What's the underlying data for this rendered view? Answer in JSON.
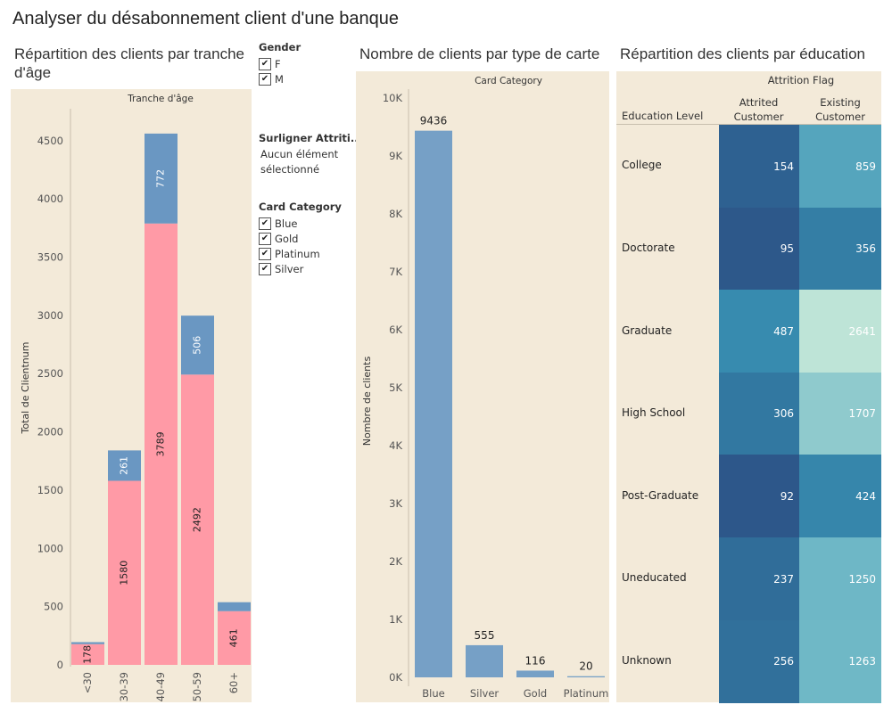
{
  "dashboard": {
    "title": "Analyser du désabonnement client d'une banque"
  },
  "colors": {
    "panel_bg": "#f3ead9",
    "attrited": "#6a97c2",
    "existing": "#ff9aa6",
    "card_bar": "#76a0c6"
  },
  "filters": {
    "gender": {
      "title": "Gender",
      "items": [
        {
          "label": "F",
          "checked": true
        },
        {
          "label": "M",
          "checked": true
        }
      ]
    },
    "highlight": {
      "title": "Surligner Attriti..",
      "value": "Aucun élément sélectionné",
      "line1": "Aucun élément",
      "line2": "sélectionné"
    },
    "card_category": {
      "title": "Card Category",
      "items": [
        {
          "label": "Blue",
          "checked": true
        },
        {
          "label": "Gold",
          "checked": true
        },
        {
          "label": "Platinum",
          "checked": true
        },
        {
          "label": "Silver",
          "checked": true
        }
      ]
    }
  },
  "chart_data": [
    {
      "type": "bar",
      "stacked": true,
      "title": "Répartition des clients par tranche d'âge",
      "title_line1": "Répartition des clients par tranche",
      "title_line2": "d'âge",
      "column_header": "Tranche d'âge",
      "ylabel": "Total de Clientnum",
      "ylim": [
        0,
        4800
      ],
      "yticks": [
        0,
        500,
        1000,
        1500,
        2000,
        2500,
        3000,
        3500,
        4000,
        4500
      ],
      "categories": [
        "<30",
        "30-39",
        "40-49",
        "50-59",
        "60+"
      ],
      "series": [
        {
          "name": "Existing Customer",
          "color": "#ff9aa6",
          "values": [
            178,
            1580,
            3789,
            2492,
            461
          ]
        },
        {
          "name": "Attrited Customer",
          "color": "#6a97c2",
          "values": [
            17,
            261,
            772,
            506,
            77
          ]
        }
      ],
      "bar_labels": {
        "Existing Customer": [
          "178",
          "1580",
          "3789",
          "2492",
          "461"
        ],
        "Attrited Customer": [
          "",
          "261",
          "772",
          "506",
          ""
        ]
      }
    },
    {
      "type": "bar",
      "title": "Nombre de clients par type de carte",
      "column_header": "Card Category",
      "ylabel": "Nombre de clients",
      "ylim": [
        0,
        10000
      ],
      "yticks": [
        0,
        1000,
        2000,
        3000,
        4000,
        5000,
        6000,
        7000,
        8000,
        9000,
        10000
      ],
      "ytick_labels": [
        "0K",
        "1K",
        "2K",
        "3K",
        "4K",
        "5K",
        "6K",
        "7K",
        "8K",
        "9K",
        "10K"
      ],
      "categories": [
        "Blue",
        "Silver",
        "Gold",
        "Platinum"
      ],
      "values": [
        9436,
        555,
        116,
        20
      ],
      "value_labels": [
        "9436",
        "555",
        "116",
        "20"
      ]
    },
    {
      "type": "heatmap",
      "title": "Répartition des clients par éducation",
      "column_group_header": "Attrition Flag",
      "row_header": "Education Level",
      "columns": [
        "Attrited Customer",
        "Existing Customer"
      ],
      "column_labels": [
        [
          "Attrited",
          "Customer"
        ],
        [
          "Existing",
          "Customer"
        ]
      ],
      "rows": [
        "College",
        "Doctorate",
        "Graduate",
        "High School",
        "Post-Graduate",
        "Uneducated",
        "Unknown"
      ],
      "values": [
        [
          154,
          859
        ],
        [
          95,
          356
        ],
        [
          487,
          2641
        ],
        [
          306,
          1707
        ],
        [
          92,
          424
        ],
        [
          237,
          1250
        ],
        [
          256,
          1263
        ]
      ],
      "value_labels": [
        [
          "154",
          "859"
        ],
        [
          "95",
          "356"
        ],
        [
          "487",
          "2641"
        ],
        [
          "306",
          "1707"
        ],
        [
          "92",
          "424"
        ],
        [
          "237",
          "1250"
        ],
        [
          "256",
          "1263"
        ]
      ]
    }
  ]
}
